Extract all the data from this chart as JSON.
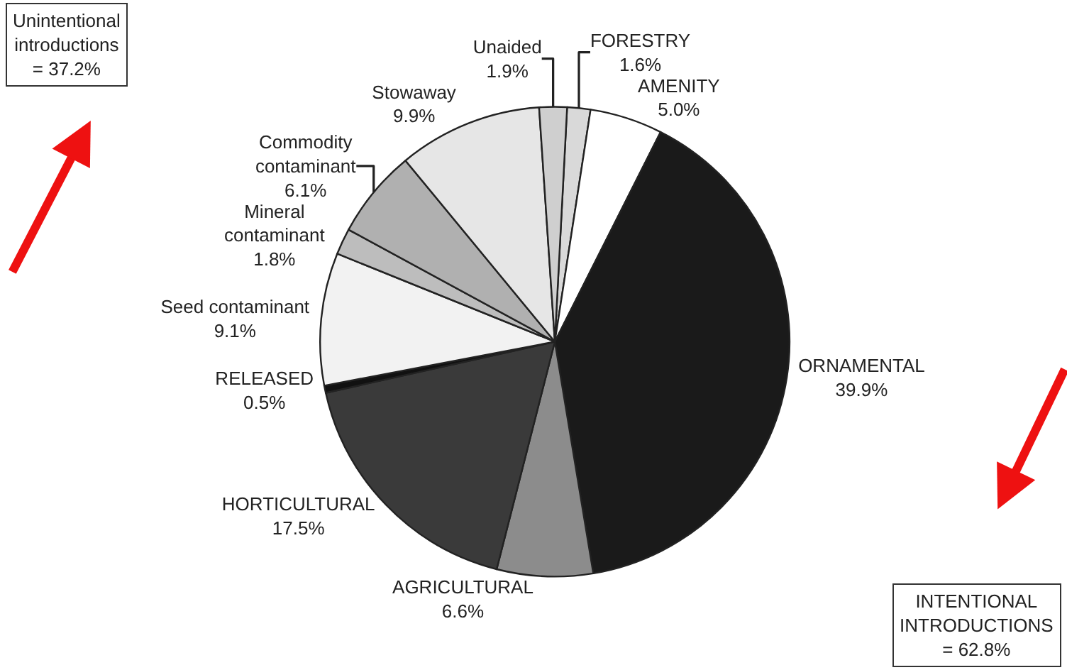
{
  "chart_data": {
    "type": "pie",
    "categories": [
      "FORESTRY",
      "AMENITY",
      "ORNAMENTAL",
      "AGRICULTURAL",
      "HORTICULTURAL",
      "RELEASED",
      "Seed contaminant",
      "Mineral\ncontaminant",
      "Commodity\ncontaminant",
      "Stowaway",
      "Unaided"
    ],
    "values": [
      1.6,
      5.0,
      39.9,
      6.6,
      17.5,
      0.5,
      9.1,
      1.8,
      6.1,
      9.9,
      1.9
    ],
    "value_labels": [
      "1.6%",
      "5.0%",
      "39.9%",
      "6.6%",
      "17.5%",
      "0.5%",
      "9.1%",
      "1.8%",
      "6.1%",
      "9.9%",
      "1.9%"
    ],
    "colors": [
      "#d9d9d9",
      "#ffffff",
      "#1a1a1a",
      "#8c8c8c",
      "#3a3a3a",
      "#111111",
      "#f2f2f2",
      "#bdbdbd",
      "#b0b0b0",
      "#e6e6e6",
      "#cfcfcf"
    ],
    "legend": false,
    "annotations": [
      "Unintentional\nintroductions\n= 37.2%",
      "INTENTIONAL\nINTRODUCTIONS\n= 62.8%"
    ]
  }
}
